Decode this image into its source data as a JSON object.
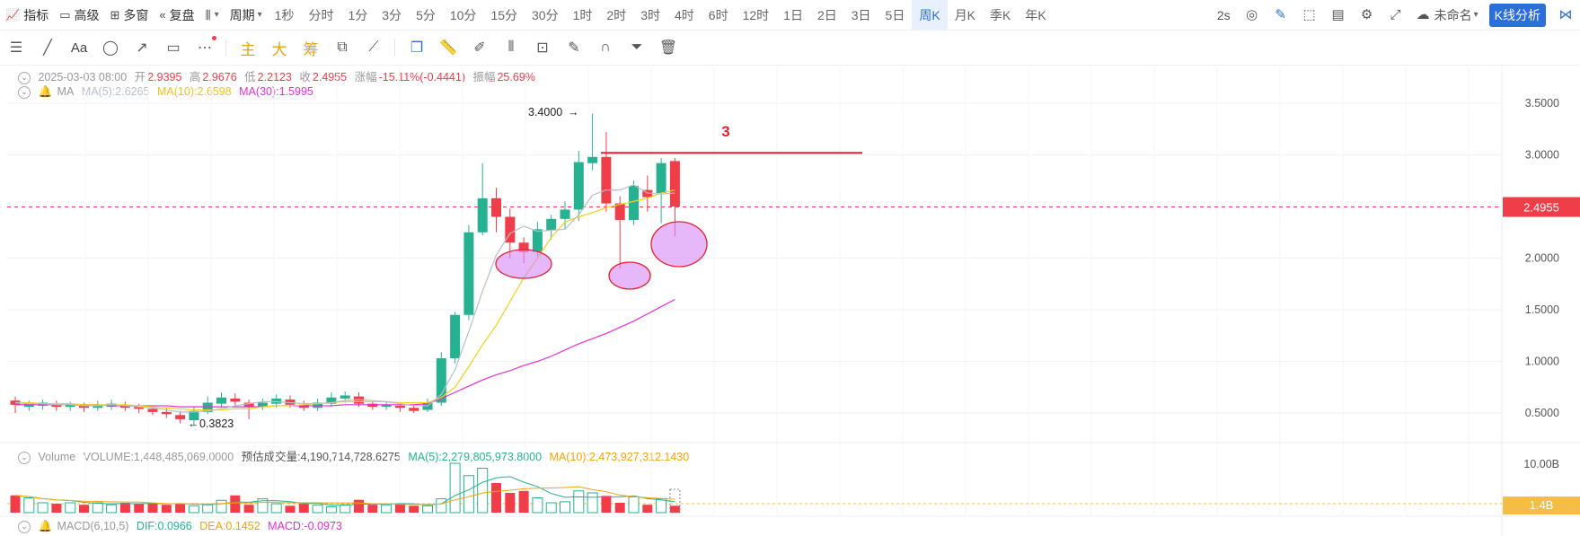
{
  "topbar": {
    "indicators": "指标",
    "advanced": "高级",
    "multi_window": "多窗",
    "replay": "复盘",
    "period": "周期",
    "periods": [
      "1秒",
      "分时",
      "1分",
      "3分",
      "5分",
      "10分",
      "15分",
      "30分",
      "1时",
      "2时",
      "3时",
      "4时",
      "6时",
      "12时",
      "1日",
      "2日",
      "3日",
      "5日",
      "周K",
      "月K",
      "季K",
      "年K"
    ],
    "active_period": "周K",
    "refresh": "2s",
    "layout_name": "未命名",
    "kline_button": "K线分析"
  },
  "toolbar2": {
    "main": "主",
    "big": "大",
    "chips": "筹",
    "text_tool": "Aa"
  },
  "ohlc": {
    "date": "2025-03-03 08:00",
    "open_label": "开",
    "open": "2.9395",
    "high_label": "高",
    "high": "2.9676",
    "low_label": "低",
    "low": "2.2123",
    "close_label": "收",
    "close": "2.4955",
    "change_label": "涨幅",
    "change": "-15.11%(-0.4441)",
    "amp_label": "振幅",
    "amp": "25.69%"
  },
  "ma": {
    "label": "MA",
    "ma5": "MA(5):2.6265",
    "ma10": "MA(10):2.6598",
    "ma30": "MA(30):1.5995"
  },
  "volume": {
    "label": "Volume",
    "vol": "VOLUME:1,448,485,069.0000",
    "est": "预估成交量:4,190,714,728.6275",
    "ma5": "MA(5):2,279,805,973.8000",
    "ma10": "MA(10):2,473,927,312.1430",
    "axis_top": "10.00B",
    "badge": "1.4B"
  },
  "macd": {
    "label": "MACD(6,10,5)",
    "dif": "DIF:0.0966",
    "dea": "DEA:0.1452",
    "macd": "MACD:-0.0973"
  },
  "price_axis": [
    "3.5000",
    "3.0000",
    "2.5000",
    "2.0000",
    "1.5000",
    "1.0000",
    "0.5000"
  ],
  "price_badge": "2.4955",
  "annotations": {
    "high": "3.4000",
    "low": "0.3823",
    "number": "3"
  },
  "colors": {
    "up": "#26b290",
    "down": "#ef3e4a",
    "ma5": "#b9bec8",
    "ma10": "#f2d21d",
    "ma30": "#e72ed8",
    "accent": "#2c6fd9",
    "badge_red": "#ef3e4a",
    "badge_vol": "#f5bd45"
  },
  "chart_data": {
    "type": "candlestick",
    "ylim": [
      0.2,
      3.8
    ],
    "candles": [
      [
        0.62,
        0.58,
        0.66,
        0.5
      ],
      [
        0.56,
        0.59,
        0.62,
        0.52
      ],
      [
        0.57,
        0.6,
        0.63,
        0.53
      ],
      [
        0.58,
        0.56,
        0.62,
        0.52
      ],
      [
        0.56,
        0.59,
        0.61,
        0.52
      ],
      [
        0.58,
        0.55,
        0.6,
        0.51
      ],
      [
        0.55,
        0.57,
        0.62,
        0.52
      ],
      [
        0.56,
        0.59,
        0.63,
        0.53
      ],
      [
        0.58,
        0.55,
        0.61,
        0.52
      ],
      [
        0.56,
        0.54,
        0.59,
        0.5
      ],
      [
        0.54,
        0.51,
        0.57,
        0.48
      ],
      [
        0.51,
        0.49,
        0.55,
        0.45
      ],
      [
        0.48,
        0.44,
        0.52,
        0.4
      ],
      [
        0.43,
        0.52,
        0.56,
        0.38
      ],
      [
        0.51,
        0.6,
        0.66,
        0.49
      ],
      [
        0.59,
        0.65,
        0.7,
        0.55
      ],
      [
        0.64,
        0.61,
        0.69,
        0.56
      ],
      [
        0.6,
        0.56,
        0.63,
        0.44
      ],
      [
        0.56,
        0.6,
        0.64,
        0.53
      ],
      [
        0.59,
        0.64,
        0.68,
        0.55
      ],
      [
        0.63,
        0.58,
        0.67,
        0.55
      ],
      [
        0.58,
        0.55,
        0.62,
        0.52
      ],
      [
        0.55,
        0.6,
        0.64,
        0.52
      ],
      [
        0.59,
        0.65,
        0.7,
        0.56
      ],
      [
        0.64,
        0.67,
        0.71,
        0.6
      ],
      [
        0.66,
        0.59,
        0.7,
        0.56
      ],
      [
        0.59,
        0.56,
        0.62,
        0.53
      ],
      [
        0.56,
        0.58,
        0.61,
        0.53
      ],
      [
        0.57,
        0.55,
        0.6,
        0.51
      ],
      [
        0.55,
        0.52,
        0.58,
        0.5
      ],
      [
        0.53,
        0.6,
        0.64,
        0.51
      ],
      [
        0.6,
        1.03,
        1.09,
        0.57
      ],
      [
        1.03,
        1.45,
        1.48,
        0.98
      ],
      [
        1.45,
        2.25,
        2.32,
        1.4
      ],
      [
        2.25,
        2.58,
        2.92,
        2.22
      ],
      [
        2.58,
        2.4,
        2.68,
        2.25
      ],
      [
        2.4,
        2.15,
        2.48,
        2.0
      ],
      [
        2.15,
        2.06,
        2.2,
        1.95
      ],
      [
        2.06,
        2.28,
        2.35,
        2.02
      ],
      [
        2.27,
        2.38,
        2.42,
        2.18
      ],
      [
        2.38,
        2.47,
        2.55,
        2.28
      ],
      [
        2.47,
        2.93,
        3.04,
        2.36
      ],
      [
        2.92,
        2.98,
        3.4,
        2.85
      ],
      [
        2.98,
        2.53,
        3.22,
        2.45
      ],
      [
        2.53,
        2.37,
        2.6,
        1.9
      ],
      [
        2.37,
        2.7,
        2.75,
        2.32
      ],
      [
        2.66,
        2.59,
        2.8,
        2.45
      ],
      [
        2.63,
        2.92,
        2.97,
        2.34
      ],
      [
        2.94,
        2.5,
        2.97,
        2.21
      ]
    ],
    "ma5": [
      0.6,
      0.59,
      0.59,
      0.58,
      0.58,
      0.57,
      0.57,
      0.58,
      0.57,
      0.56,
      0.55,
      0.53,
      0.51,
      0.51,
      0.52,
      0.54,
      0.57,
      0.59,
      0.61,
      0.61,
      0.6,
      0.59,
      0.59,
      0.6,
      0.62,
      0.63,
      0.62,
      0.61,
      0.59,
      0.57,
      0.57,
      0.68,
      0.92,
      1.29,
      1.68,
      2.03,
      2.24,
      2.31,
      2.26,
      2.27,
      2.28,
      2.42,
      2.61,
      2.66,
      2.66,
      2.71,
      2.63,
      2.62,
      2.63
    ],
    "ma10": [
      0.6,
      0.6,
      0.59,
      0.59,
      0.59,
      0.58,
      0.58,
      0.58,
      0.58,
      0.57,
      0.56,
      0.55,
      0.54,
      0.53,
      0.53,
      0.53,
      0.54,
      0.54,
      0.56,
      0.57,
      0.57,
      0.58,
      0.59,
      0.6,
      0.61,
      0.61,
      0.61,
      0.61,
      0.6,
      0.6,
      0.6,
      0.65,
      0.75,
      0.95,
      1.16,
      1.35,
      1.58,
      1.81,
      2.0,
      2.2,
      2.35,
      2.4,
      2.44,
      2.49,
      2.52,
      2.55,
      2.58,
      2.63,
      2.66
    ],
    "ma30": [
      0.58,
      0.58,
      0.58,
      0.58,
      0.58,
      0.58,
      0.58,
      0.57,
      0.57,
      0.57,
      0.57,
      0.57,
      0.56,
      0.56,
      0.56,
      0.56,
      0.56,
      0.56,
      0.56,
      0.57,
      0.57,
      0.57,
      0.57,
      0.57,
      0.58,
      0.58,
      0.58,
      0.58,
      0.58,
      0.58,
      0.59,
      0.64,
      0.7,
      0.76,
      0.82,
      0.87,
      0.91,
      0.96,
      1.0,
      1.05,
      1.11,
      1.17,
      1.22,
      1.27,
      1.33,
      1.39,
      1.46,
      1.53,
      1.6
    ],
    "volume": [
      0.35,
      0.3,
      0.2,
      0.18,
      0.2,
      0.16,
      0.2,
      0.16,
      0.2,
      0.18,
      0.2,
      0.16,
      0.18,
      0.14,
      0.16,
      0.25,
      0.35,
      0.16,
      0.28,
      0.18,
      0.14,
      0.18,
      0.15,
      0.12,
      0.16,
      0.26,
      0.16,
      0.16,
      0.18,
      0.14,
      0.14,
      0.28,
      1.0,
      0.75,
      0.9,
      0.6,
      0.4,
      0.44,
      0.3,
      0.2,
      0.22,
      0.44,
      0.4,
      0.34,
      0.2,
      0.32,
      0.16,
      0.28,
      0.14
    ],
    "resistance_level": 3.02,
    "current_price": 2.4955
  }
}
